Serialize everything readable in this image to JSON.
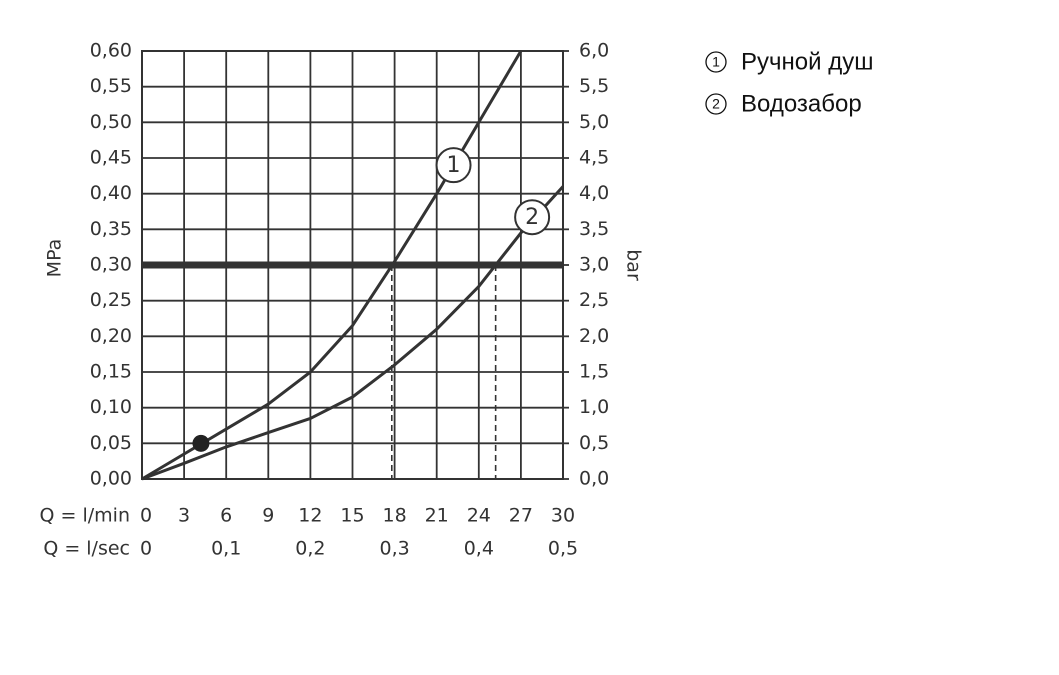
{
  "chart_data": {
    "type": "line",
    "ylabel": "MPa",
    "y2label": "bar",
    "xlabel": "Q = l/min",
    "x2label": "Q = l/sec",
    "x": [
      0,
      3,
      6,
      9,
      12,
      15,
      18,
      21,
      24,
      27,
      30
    ],
    "series": [
      {
        "name": "Ручной душ",
        "label": "1",
        "color": "#333333",
        "values": [
          0,
          0.035,
          0.07,
          0.105,
          0.15,
          0.215,
          0.305,
          0.4,
          0.5,
          0.6,
          null
        ]
      },
      {
        "name": "Водозабор",
        "label": "2",
        "color": "#333333",
        "values": [
          0,
          0.022,
          0.045,
          0.065,
          0.085,
          0.115,
          0.16,
          0.21,
          0.27,
          0.345,
          0.41
        ]
      }
    ],
    "xlim": [
      0,
      30
    ],
    "xticks": [
      0,
      3,
      6,
      9,
      12,
      15,
      18,
      21,
      24,
      27,
      30
    ],
    "x2lim": [
      0,
      0.5
    ],
    "x2ticks": [
      0,
      {
        "value": 0.1,
        "label": "0,1"
      },
      {
        "value": 0.2,
        "label": "0,2"
      },
      {
        "value": 0.3,
        "label": "0,3"
      },
      {
        "value": 0.4,
        "label": "0,4"
      },
      {
        "value": 0.5,
        "label": "0,5"
      }
    ],
    "ylim": [
      0,
      0.6
    ],
    "yticks": [
      {
        "value": 0,
        "label": "0,00"
      },
      {
        "value": 0.05,
        "label": "0,05"
      },
      {
        "value": 0.1,
        "label": "0,10"
      },
      {
        "value": 0.15,
        "label": "0,15"
      },
      {
        "value": 0.2,
        "label": "0,20"
      },
      {
        "value": 0.25,
        "label": "0,25"
      },
      {
        "value": 0.3,
        "label": "0,30"
      },
      {
        "value": 0.35,
        "label": "0,35"
      },
      {
        "value": 0.4,
        "label": "0,40"
      },
      {
        "value": 0.45,
        "label": "0,45"
      },
      {
        "value": 0.5,
        "label": "0,50"
      },
      {
        "value": 0.55,
        "label": "0,55"
      },
      {
        "value": 0.6,
        "label": "0,60"
      }
    ],
    "y2lim": [
      0,
      6
    ],
    "y2ticks": [
      {
        "value": 0,
        "label": "0,0"
      },
      {
        "value": 0.5,
        "label": "0,5"
      },
      {
        "value": 1,
        "label": "1,0"
      },
      {
        "value": 1.5,
        "label": "1,5"
      },
      {
        "value": 2,
        "label": "2,0"
      },
      {
        "value": 2.5,
        "label": "2,5"
      },
      {
        "value": 3,
        "label": "3,0"
      },
      {
        "value": 3.5,
        "label": "3,5"
      },
      {
        "value": 4,
        "label": "4,0"
      },
      {
        "value": 4.5,
        "label": "4,5"
      },
      {
        "value": 5,
        "label": "5,0"
      },
      {
        "value": 5.5,
        "label": "5,5"
      },
      {
        "value": 6,
        "label": "6,0"
      }
    ],
    "hline": 0.3,
    "reference_x": [
      17.8,
      25.2
    ],
    "point": {
      "x": 4.2,
      "y": 0.05
    },
    "series_label_positions": [
      {
        "x": 22.2,
        "y": 0.44
      },
      {
        "x": 27.8,
        "y": 0.367
      }
    ],
    "grid": true
  }
}
